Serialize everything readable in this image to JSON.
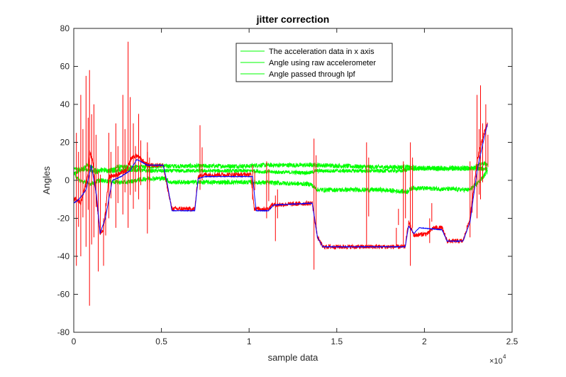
{
  "chart_data": {
    "type": "line",
    "title": "jitter correction",
    "xlabel": "sample data",
    "ylabel": "Angles",
    "x_exponent_label": "×10",
    "x_exponent_power": "4",
    "xlim": [
      0,
      25000
    ],
    "ylim": [
      -80,
      80
    ],
    "xticks": [
      0,
      5000,
      10000,
      15000,
      20000,
      25000
    ],
    "xtick_labels": [
      "0",
      "0.5",
      "1",
      "1.5",
      "2",
      "2.5"
    ],
    "yticks": [
      -80,
      -60,
      -40,
      -20,
      0,
      20,
      40,
      60,
      80
    ],
    "ytick_labels": [
      "-80",
      "-60",
      "-40",
      "-20",
      "0",
      "20",
      "40",
      "60",
      "80"
    ],
    "grid": false,
    "legend_position": "top-center",
    "legend": [
      "The acceleration data in x axis",
      "Angle using raw accelerometer",
      "Angle passed through lpf"
    ],
    "colors": {
      "green": "#00ff00",
      "red": "#ff0000",
      "blue": "#0000ff",
      "axes": "#262626"
    },
    "series": [
      {
        "color": "#00ff00",
        "noise": 1.2,
        "points": [
          [
            0,
            3
          ],
          [
            300,
            5
          ],
          [
            700,
            6
          ],
          [
            1300,
            4
          ],
          [
            1600,
            6
          ],
          [
            2000,
            5
          ],
          [
            2500,
            7
          ],
          [
            3200,
            7
          ],
          [
            3800,
            7
          ],
          [
            4600,
            7.5
          ],
          [
            5200,
            7.5
          ],
          [
            7000,
            7.5
          ],
          [
            7300,
            7.5
          ],
          [
            10000,
            7.5
          ],
          [
            10500,
            8
          ],
          [
            13000,
            8
          ],
          [
            14000,
            8
          ],
          [
            17000,
            7
          ],
          [
            19000,
            7
          ],
          [
            19600,
            6.5
          ],
          [
            22500,
            6.5
          ],
          [
            23600,
            6
          ]
        ]
      },
      {
        "color": "#00ff00",
        "noise": 1.0,
        "points": [
          [
            0,
            6
          ],
          [
            400,
            6
          ],
          [
            800,
            8
          ],
          [
            1400,
            5
          ],
          [
            2500,
            5
          ],
          [
            3500,
            5.5
          ],
          [
            4200,
            5
          ],
          [
            5200,
            5
          ],
          [
            5400,
            5
          ],
          [
            7000,
            5
          ],
          [
            9500,
            5
          ],
          [
            10400,
            5
          ],
          [
            10700,
            4.5
          ],
          [
            13500,
            4
          ],
          [
            13800,
            5
          ],
          [
            16000,
            5
          ],
          [
            18800,
            5
          ],
          [
            19100,
            6
          ],
          [
            22500,
            6
          ],
          [
            23400,
            9
          ],
          [
            23600,
            8
          ]
        ]
      },
      {
        "color": "#00ff00",
        "noise": 1.2,
        "points": [
          [
            0,
            4
          ],
          [
            300,
            0
          ],
          [
            900,
            -2
          ],
          [
            1500,
            0
          ],
          [
            2500,
            -1
          ],
          [
            3000,
            -1
          ],
          [
            3600,
            0
          ],
          [
            4200,
            1
          ],
          [
            5200,
            1
          ],
          [
            5500,
            -1
          ],
          [
            7000,
            -1
          ],
          [
            9800,
            -1
          ],
          [
            10300,
            -1
          ],
          [
            13500,
            -2
          ],
          [
            13900,
            -5
          ],
          [
            17500,
            -5
          ],
          [
            19000,
            -6
          ],
          [
            19300,
            -4
          ],
          [
            22600,
            -5
          ],
          [
            23200,
            0
          ],
          [
            23600,
            5
          ]
        ]
      },
      {
        "color": "#ff0000",
        "noise": 1.2,
        "points": [
          [
            0,
            -10
          ],
          [
            200,
            -10
          ],
          [
            400,
            -12
          ],
          [
            600,
            -5
          ],
          [
            800,
            2
          ],
          [
            900,
            15
          ],
          [
            1100,
            10
          ],
          [
            1300,
            -10
          ],
          [
            1500,
            -28
          ],
          [
            1700,
            -26
          ],
          [
            2000,
            2
          ],
          [
            2500,
            3
          ],
          [
            3000,
            5
          ],
          [
            3300,
            12
          ],
          [
            3600,
            13
          ],
          [
            4200,
            8
          ],
          [
            4500,
            8
          ],
          [
            5100,
            8
          ],
          [
            5300,
            -2
          ],
          [
            5600,
            -15
          ],
          [
            6900,
            -15
          ],
          [
            7100,
            2
          ],
          [
            7400,
            3
          ],
          [
            9900,
            3
          ],
          [
            10100,
            3
          ],
          [
            10300,
            -15
          ],
          [
            11100,
            -15
          ],
          [
            11300,
            -13
          ],
          [
            13600,
            -12
          ],
          [
            13900,
            -30
          ],
          [
            14200,
            -35
          ],
          [
            18900,
            -35
          ],
          [
            19100,
            -22
          ],
          [
            19400,
            -29
          ],
          [
            20200,
            -28
          ],
          [
            20500,
            -25
          ],
          [
            21000,
            -25
          ],
          [
            21300,
            -32
          ],
          [
            22200,
            -32
          ],
          [
            22600,
            -20
          ],
          [
            23000,
            10
          ],
          [
            23300,
            22
          ],
          [
            23600,
            30
          ]
        ]
      },
      {
        "color": "#0000ff",
        "noise": 0.15,
        "points": [
          [
            0,
            -12
          ],
          [
            300,
            -10
          ],
          [
            700,
            -5
          ],
          [
            1000,
            8
          ],
          [
            1300,
            -8
          ],
          [
            1500,
            -28
          ],
          [
            1800,
            -20
          ],
          [
            2200,
            0
          ],
          [
            2700,
            2
          ],
          [
            3200,
            5
          ],
          [
            3600,
            11
          ],
          [
            4200,
            8
          ],
          [
            5100,
            8
          ],
          [
            5300,
            0
          ],
          [
            5600,
            -16
          ],
          [
            6900,
            -16
          ],
          [
            7100,
            1
          ],
          [
            7500,
            2
          ],
          [
            10000,
            2
          ],
          [
            10200,
            2
          ],
          [
            10400,
            -16
          ],
          [
            11100,
            -16
          ],
          [
            11400,
            -13
          ],
          [
            13600,
            -12
          ],
          [
            13900,
            -30
          ],
          [
            14200,
            -35
          ],
          [
            18900,
            -35
          ],
          [
            19100,
            -24
          ],
          [
            19400,
            -28
          ],
          [
            19700,
            -25
          ],
          [
            21000,
            -26
          ],
          [
            21300,
            -32
          ],
          [
            22200,
            -32
          ],
          [
            22600,
            -22
          ],
          [
            23000,
            5
          ],
          [
            23300,
            18
          ],
          [
            23600,
            30
          ]
        ]
      }
    ],
    "spikes": [
      {
        "x": 150,
        "min": -45,
        "max": 25
      },
      {
        "x": 400,
        "min": -40,
        "max": 45
      },
      {
        "x": 700,
        "min": -35,
        "max": 55
      },
      {
        "x": 900,
        "min": -66,
        "max": 58
      },
      {
        "x": 1150,
        "min": -30,
        "max": 40
      },
      {
        "x": 1400,
        "min": -48,
        "max": 5
      },
      {
        "x": 1700,
        "min": -45,
        "max": -20
      },
      {
        "x": 2000,
        "min": -20,
        "max": 25
      },
      {
        "x": 2400,
        "min": -25,
        "max": 30
      },
      {
        "x": 2800,
        "min": -18,
        "max": 45
      },
      {
        "x": 3100,
        "min": -25,
        "max": 73
      },
      {
        "x": 3400,
        "min": -15,
        "max": 30
      },
      {
        "x": 3700,
        "min": -10,
        "max": 35
      },
      {
        "x": 4200,
        "min": -5,
        "max": 20
      },
      {
        "x": 4200,
        "min": -28,
        "max": 15
      },
      {
        "x": 7200,
        "min": -5,
        "max": 29
      },
      {
        "x": 10200,
        "min": -10,
        "max": 8
      },
      {
        "x": 11000,
        "min": -20,
        "max": 10
      },
      {
        "x": 11500,
        "min": -32,
        "max": -8
      },
      {
        "x": 13700,
        "min": -47,
        "max": 22
      },
      {
        "x": 16700,
        "min": -35,
        "max": 20
      },
      {
        "x": 18400,
        "min": -35,
        "max": -25
      },
      {
        "x": 18800,
        "min": -35,
        "max": 10
      },
      {
        "x": 19200,
        "min": -45,
        "max": 20
      },
      {
        "x": 20300,
        "min": -33,
        "max": -20
      },
      {
        "x": 22600,
        "min": -30,
        "max": 10
      },
      {
        "x": 23000,
        "min": -20,
        "max": 45
      },
      {
        "x": 23200,
        "min": -10,
        "max": 50
      },
      {
        "x": 23500,
        "min": 5,
        "max": 40
      }
    ]
  }
}
